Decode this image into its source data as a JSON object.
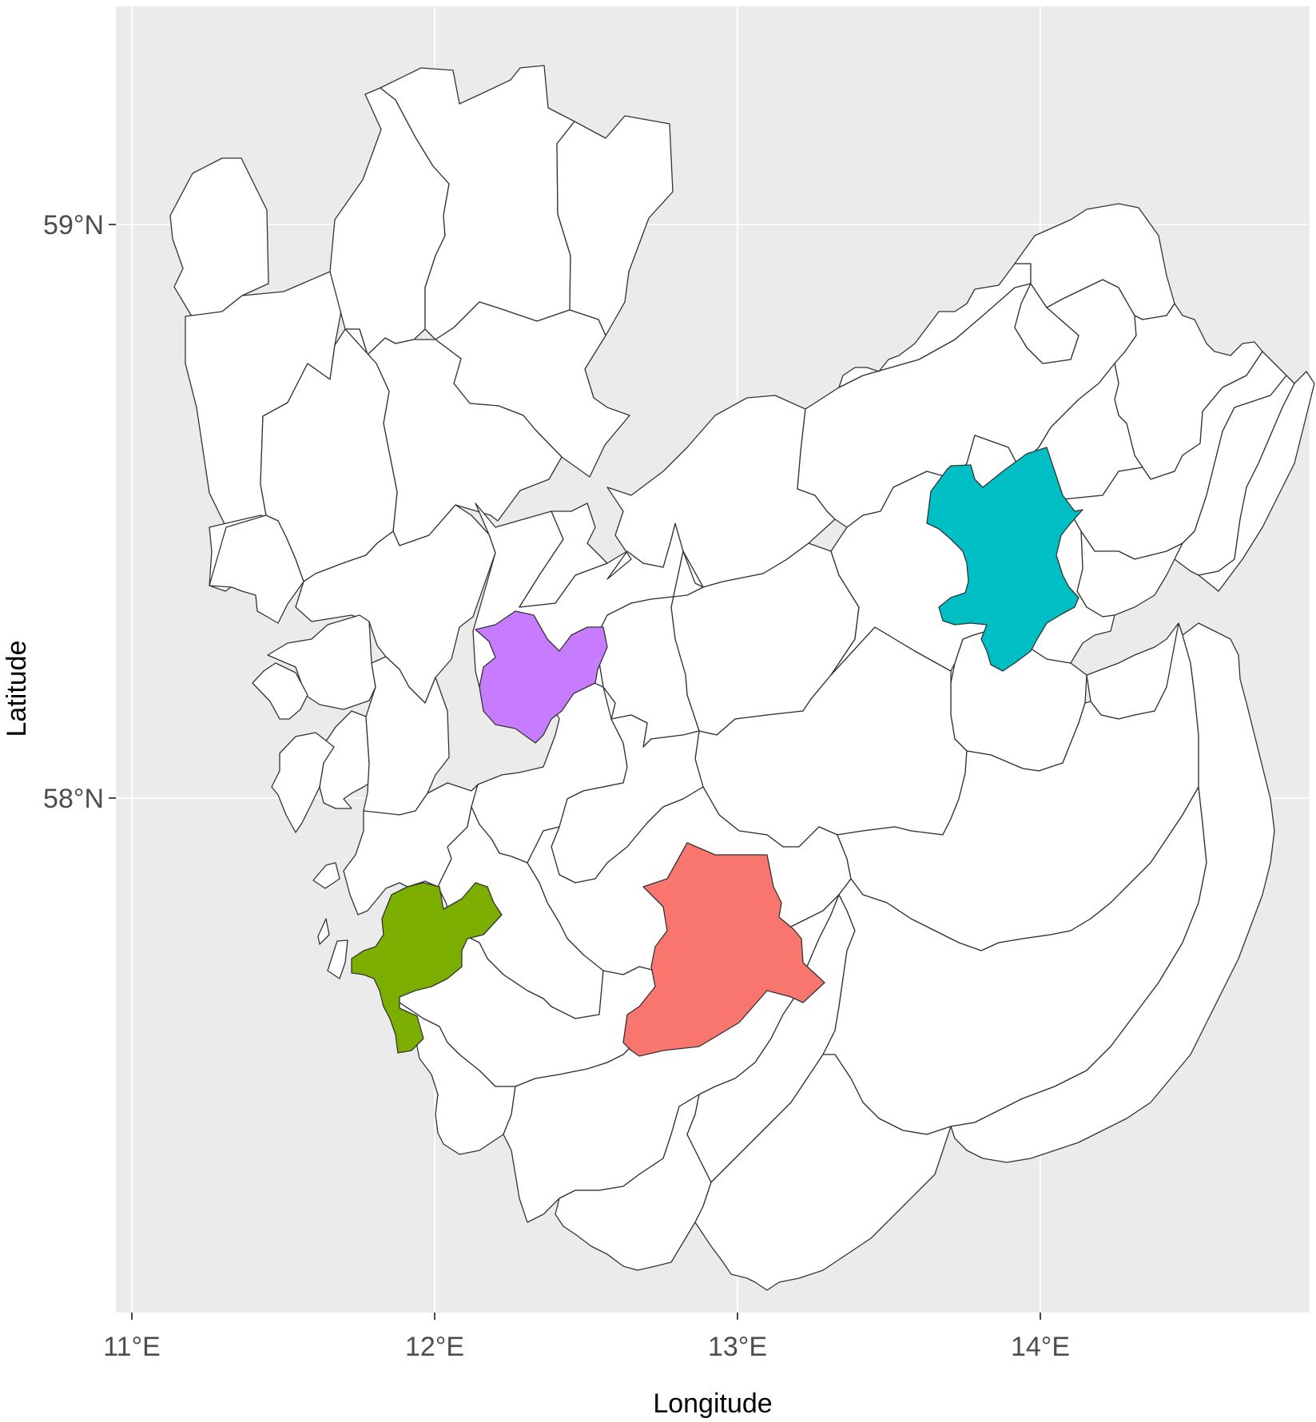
{
  "chart_data": {
    "type": "map",
    "title": "",
    "xlabel": "Longitude",
    "ylabel": "Latitude",
    "x_ticks": [
      "11°E",
      "12°E",
      "13°E",
      "14°E"
    ],
    "y_ticks": [
      "59°N",
      "58°N"
    ],
    "xlim": [
      10.95,
      14.87
    ],
    "ylim": [
      57.13,
      59.38
    ],
    "grid": true,
    "panel_background": "#ebebeb",
    "grid_color": "#ffffff",
    "default_fill": "#ffffff",
    "border_color": "#333333",
    "highlighted_regions": [
      {
        "color": "#f8766d",
        "center_lon": 12.95,
        "center_lat": 57.65
      },
      {
        "color": "#7cae00",
        "center_lon": 12.0,
        "center_lat": 57.63
      },
      {
        "color": "#00bfc4",
        "center_lon": 13.93,
        "center_lat": 58.42
      },
      {
        "color": "#c77cff",
        "center_lon": 12.38,
        "center_lat": 58.22
      }
    ]
  }
}
